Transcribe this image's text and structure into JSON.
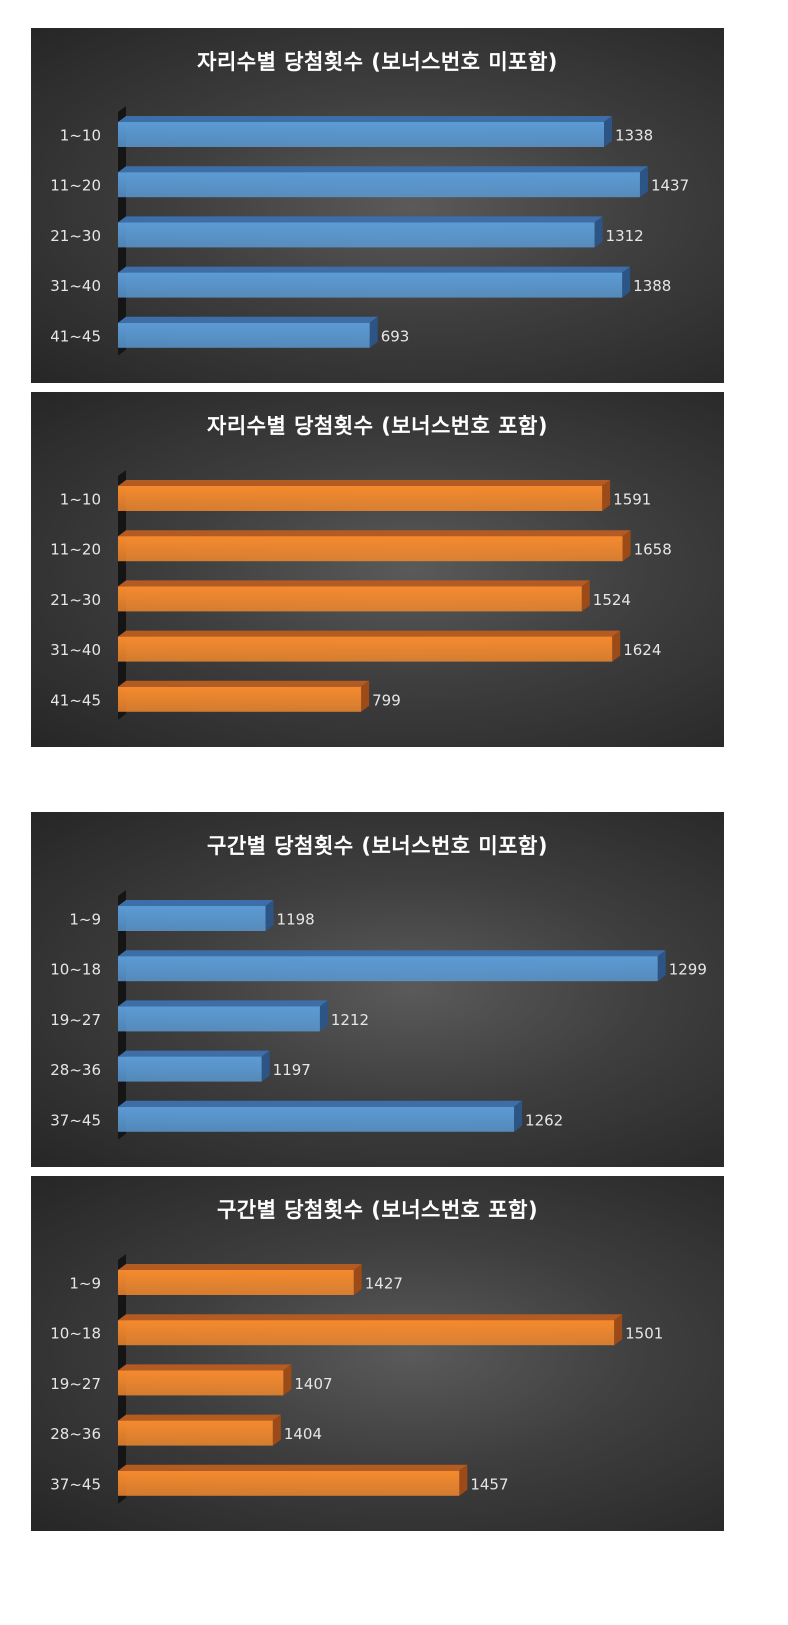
{
  "colors": {
    "blue_face": "#5b9bd5",
    "blue_top": "#3e6ea8",
    "blue_side": "#2c5585",
    "orange_face": "#f58a2e",
    "orange_top": "#b35b22",
    "orange_side": "#9c4a17",
    "label": "#e6e6e6"
  },
  "chart_data": [
    {
      "type": "bar",
      "orientation": "horizontal",
      "style": "3d",
      "color": "blue",
      "title": "자리수별 당첨횟수 (보너스번호 미포함)",
      "categories": [
        "1~10",
        "11~20",
        "21~30",
        "31~40",
        "41~45"
      ],
      "values": [
        1338,
        1437,
        1312,
        1388,
        693
      ],
      "xlim": [
        0,
        1550
      ],
      "grid": false,
      "legend": "none"
    },
    {
      "type": "bar",
      "orientation": "horizontal",
      "style": "3d",
      "color": "orange",
      "title": "자리수별 당첨횟수 (보너스번호 포함)",
      "categories": [
        "1~10",
        "11~20",
        "21~30",
        "31~40",
        "41~45"
      ],
      "values": [
        1591,
        1658,
        1524,
        1624,
        799
      ],
      "xlim": [
        0,
        1850
      ],
      "grid": false,
      "legend": "none"
    },
    {
      "type": "bar",
      "orientation": "horizontal",
      "style": "3d",
      "color": "blue",
      "title": "구간별 당첨횟수 (보너스번호 미포함)",
      "categories": [
        "1~9",
        "10~18",
        "19~27",
        "28~36",
        "37~45"
      ],
      "values": [
        1198,
        1299,
        1212,
        1197,
        1262
      ],
      "xlim": [
        1160,
        1305
      ],
      "grid": false,
      "legend": "none"
    },
    {
      "type": "bar",
      "orientation": "horizontal",
      "style": "3d",
      "color": "orange",
      "title": "구간별 당첨횟수 (보너스번호 포함)",
      "categories": [
        "1~9",
        "10~18",
        "19~27",
        "28~36",
        "37~45"
      ],
      "values": [
        1427,
        1501,
        1407,
        1404,
        1457
      ],
      "xlim": [
        1360,
        1520
      ],
      "grid": false,
      "legend": "none"
    }
  ]
}
